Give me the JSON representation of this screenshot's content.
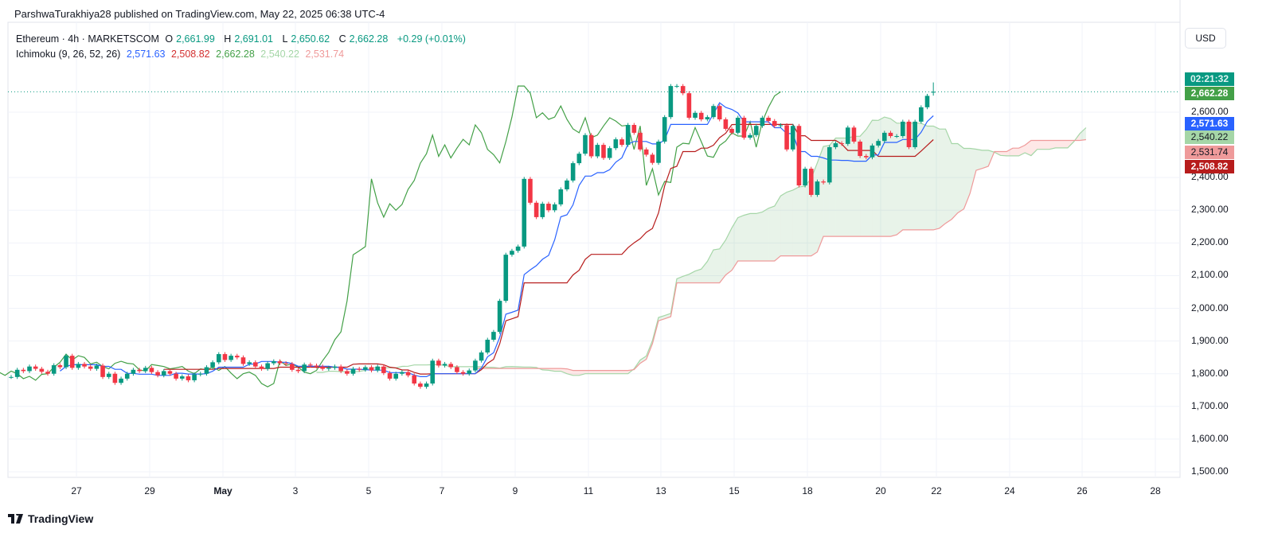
{
  "attribution": "ParshwaTurakhiya28 published on TradingView.com, May 22, 2025 06:38 UTC-4",
  "legend": {
    "symbol": "Ethereum · 4h · MARKETSCOM",
    "o_label": "O",
    "o_value": "2,661.99",
    "h_label": "H",
    "h_value": "2,691.01",
    "l_label": "L",
    "l_value": "2,650.62",
    "c_label": "C",
    "c_value": "2,662.28",
    "change": "+0.29 (+0.01%)",
    "indicator": "Ichimoku (9, 26, 52, 26)",
    "tenkan": "2,571.63",
    "kijun": "2,508.82",
    "chikou": "2,662.28",
    "span_a": "2,540.22",
    "span_b": "2,531.74"
  },
  "currency": "USD",
  "price_tags": {
    "countdown": "02:21:32",
    "last": "2,662.28",
    "tenkan": "2,571.63",
    "span_a": "2,540.22",
    "span_b": "2,531.74",
    "kijun": "2,508.82"
  },
  "footer": {
    "logo_text": "TradingView"
  },
  "colors": {
    "up": "#089981",
    "down": "#f23645",
    "tenkan": "#2962ff",
    "kijun": "#b71c1c",
    "chikou": "#43a047",
    "span_a": "#a5d6a7",
    "span_b": "#ef9a9a",
    "countdown_tag": "#089981",
    "last_tag": "#43a047"
  },
  "chart_data": {
    "type": "candlestick",
    "timeframe": "4h",
    "indicator": {
      "name": "Ichimoku",
      "params": [
        9,
        26,
        52,
        26
      ]
    },
    "last_candle": {
      "open": 2661.99,
      "high": 2691.01,
      "low": 2650.62,
      "close": 2662.28
    },
    "close": [
      1790,
      1812,
      1808,
      1822,
      1815,
      1806,
      1800,
      1826,
      1820,
      1855,
      1818,
      1830,
      1822,
      1815,
      1825,
      1790,
      1800,
      1772,
      1785,
      1800,
      1812,
      1808,
      1818,
      1805,
      1795,
      1808,
      1800,
      1785,
      1792,
      1780,
      1798,
      1800,
      1820,
      1835,
      1860,
      1842,
      1855,
      1850,
      1830,
      1835,
      1822,
      1815,
      1832,
      1838,
      1832,
      1830,
      1812,
      1808,
      1828,
      1825,
      1822,
      1815,
      1818,
      1822,
      1808,
      1800,
      1815,
      1812,
      1820,
      1810,
      1822,
      1802,
      1785,
      1800,
      1805,
      1795,
      1770,
      1760,
      1770,
      1840,
      1825,
      1830,
      1820,
      1805,
      1800,
      1810,
      1840,
      1865,
      1904,
      1928,
      2023,
      2164,
      2176,
      2189,
      2396,
      2323,
      2279,
      2320,
      2300,
      2318,
      2364,
      2391,
      2444,
      2473,
      2530,
      2465,
      2500,
      2460,
      2490,
      2517,
      2500,
      2561,
      2537,
      2486,
      2470,
      2445,
      2510,
      2585,
      2680,
      2680,
      2658,
      2583,
      2598,
      2578,
      2585,
      2619,
      2578,
      2549,
      2537,
      2583,
      2522,
      2530,
      2558,
      2583,
      2573,
      2558,
      2560,
      2486,
      2558,
      2376,
      2427,
      2347,
      2388,
      2385,
      2493,
      2505,
      2503,
      2553,
      2510,
      2466,
      2462,
      2498,
      2512,
      2537,
      2527,
      2527,
      2571,
      2493,
      2571,
      2615,
      2650,
      2662.28
    ],
    "y_ticks": [
      "2,600.00",
      "2,400.00",
      "2,300.00",
      "2,200.00",
      "2,100.00",
      "2,000.00",
      "1,900.00",
      "1,800.00",
      "1,700.00",
      "1,600.00",
      "1,500.00"
    ],
    "y_tick_values": [
      2600,
      2400,
      2300,
      2200,
      2100,
      2000,
      1900,
      1800,
      1700,
      1600,
      1500
    ],
    "x_ticks": [
      "27",
      "29",
      "May",
      "3",
      "5",
      "7",
      "9",
      "11",
      "13",
      "15",
      "18",
      "20",
      "22",
      "24",
      "26",
      "28"
    ],
    "ylim": [
      1470,
      2740
    ],
    "grid": true
  }
}
